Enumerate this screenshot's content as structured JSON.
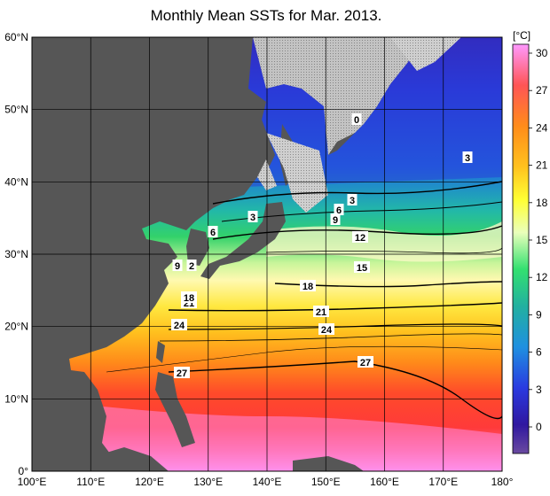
{
  "title": "Monthly Mean SSTs for Mar. 2013.",
  "colorbar": {
    "unit": "[°C]",
    "ticks": [
      "30",
      "27",
      "24",
      "21",
      "18",
      "15",
      "12",
      "9",
      "6",
      "3",
      "0"
    ],
    "colors": [
      "#ff99ff",
      "#ff3f3f",
      "#ff7f1f",
      "#ffd21f",
      "#ffff66",
      "#c0ff99",
      "#33dd66",
      "#22bbaa",
      "#2299dd",
      "#2244dd",
      "#3322aa",
      "#6a4aa0"
    ]
  },
  "axes": {
    "lat_labels": [
      "60°N",
      "50°N",
      "40°N",
      "30°N",
      "20°N",
      "10°N",
      "0°"
    ],
    "lon_labels": [
      "100°E",
      "110°E",
      "120°E",
      "130°E",
      "140°E",
      "150°E",
      "160°E",
      "170°E",
      "180°"
    ]
  },
  "contour_labels": [
    "0",
    "3",
    "3",
    "3",
    "6",
    "6",
    "9",
    "9",
    "12",
    "15",
    "18",
    "21",
    "21",
    "24",
    "24",
    "27",
    "27",
    "18",
    "2"
  ],
  "colors": {
    "land": "#555555",
    "ice": "#bbbbbb",
    "grid": "#000000"
  }
}
